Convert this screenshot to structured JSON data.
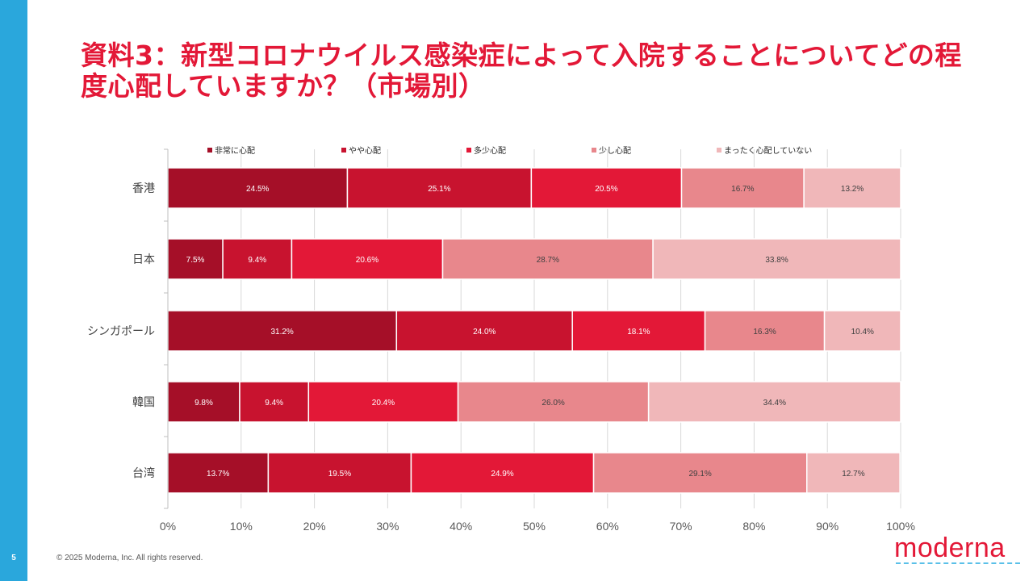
{
  "slide": {
    "page_number": "5",
    "title": "資料3：新型コロナウイルス感染症によって入院することについてどの程度心配していますか？（市場別）",
    "copyright": "© 2025 Moderna, Inc. All rights reserved.",
    "logo_text": "moderna"
  },
  "colors": {
    "sidebar": "#2aa7dc",
    "title": "#e31837",
    "series": [
      "#a50f28",
      "#c8132f",
      "#e31837",
      "#e8878c",
      "#f0b7b9"
    ],
    "label_light": "#ffffff",
    "label_dark": "#404040"
  },
  "chart_data": {
    "type": "bar",
    "orientation": "horizontal",
    "stacked": true,
    "title": "",
    "xlabel": "",
    "ylabel": "",
    "xlim": [
      0,
      100
    ],
    "x_ticks": [
      "0%",
      "10%",
      "20%",
      "30%",
      "40%",
      "50%",
      "60%",
      "70%",
      "80%",
      "90%",
      "100%"
    ],
    "grid": true,
    "legend_position": "top",
    "categories": [
      "香港",
      "日本",
      "シンガポール",
      "韓国",
      "台湾"
    ],
    "series": [
      {
        "name": "非常に心配",
        "values": [
          24.5,
          7.5,
          31.2,
          9.8,
          13.7
        ],
        "labels": [
          "24.5%",
          "7.5%",
          "31.2%",
          "9.8%",
          "13.7%"
        ]
      },
      {
        "name": "やや心配",
        "values": [
          25.1,
          9.4,
          24.0,
          9.4,
          19.5
        ],
        "labels": [
          "25.1%",
          "9.4%",
          "24.0%",
          "9.4%",
          "19.5%"
        ]
      },
      {
        "name": "多少心配",
        "values": [
          20.5,
          20.6,
          18.1,
          20.4,
          24.9
        ],
        "labels": [
          "20.5%",
          "20.6%",
          "18.1%",
          "20.4%",
          "24.9%"
        ]
      },
      {
        "name": "少し心配",
        "values": [
          16.7,
          28.7,
          16.3,
          26.0,
          29.1
        ],
        "labels": [
          "16.7%",
          "28.7%",
          "16.3%",
          "26.0%",
          "29.1%"
        ]
      },
      {
        "name": "まったく心配していない",
        "values": [
          13.2,
          33.8,
          10.4,
          34.4,
          12.7
        ],
        "labels": [
          "13.2%",
          "33.8%",
          "10.4%",
          "34.4%",
          "12.7%"
        ]
      }
    ]
  }
}
